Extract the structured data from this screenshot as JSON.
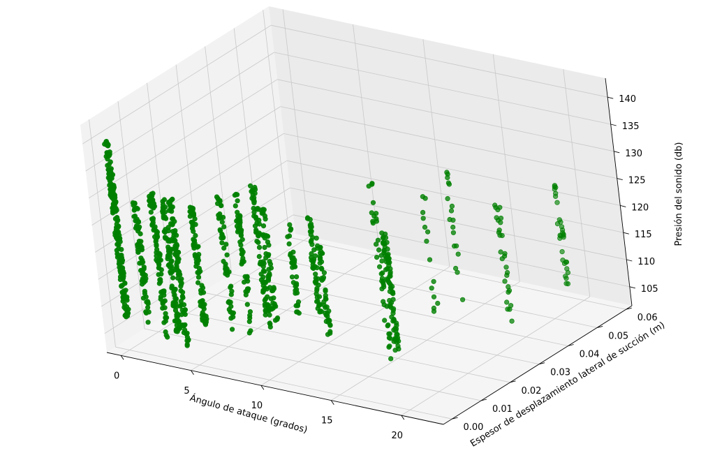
{
  "chart_data": {
    "type": "scatter",
    "projection": "3d",
    "title": "",
    "xlabel": "Ángulo de ataque (grados)",
    "ylabel": "Espesor de desplazamiento lateral de succión (m)",
    "zlabel": "Presión del sonido (db)",
    "xlim": [
      -1,
      23
    ],
    "ylim": [
      -0.003,
      0.062
    ],
    "zlim": [
      101.5,
      143.5
    ],
    "x_ticks": [
      0,
      5,
      10,
      15,
      20
    ],
    "x_tick_labels": [
      "0",
      "5",
      "10",
      "15",
      "20"
    ],
    "y_ticks": [
      0.0,
      0.01,
      0.02,
      0.03,
      0.04,
      0.05,
      0.06
    ],
    "y_tick_labels": [
      "0.00",
      "0.01",
      "0.02",
      "0.03",
      "0.04",
      "0.05",
      "0.06"
    ],
    "z_ticks": [
      105,
      110,
      115,
      120,
      125,
      130,
      135,
      140
    ],
    "z_tick_labels": [
      "105",
      "110",
      "115",
      "120",
      "125",
      "130",
      "135",
      "140"
    ],
    "grid": true,
    "marker_color": "#008000",
    "clusters": [
      {
        "x": 0.0,
        "y": 0.0004,
        "z_min": 107,
        "z_max": 140,
        "count": 200
      },
      {
        "x": 1.5,
        "y": 0.0006,
        "z_min": 107,
        "z_max": 130,
        "count": 70
      },
      {
        "x": 2.7,
        "y": 0.0008,
        "z_min": 105,
        "z_max": 132,
        "count": 90
      },
      {
        "x": 3.5,
        "y": 0.001,
        "z_min": 106,
        "z_max": 131,
        "count": 90
      },
      {
        "x": 4.0,
        "y": 0.0011,
        "z_min": 104,
        "z_max": 132,
        "count": 100
      },
      {
        "x": 5.4,
        "y": 0.0015,
        "z_min": 108,
        "z_max": 131,
        "count": 80
      },
      {
        "x": 7.3,
        "y": 0.0022,
        "z_min": 108,
        "z_max": 133,
        "count": 55
      },
      {
        "x": 8.4,
        "y": 0.003,
        "z_min": 108,
        "z_max": 134,
        "count": 60
      },
      {
        "x": 9.5,
        "y": 0.004,
        "z_min": 108,
        "z_max": 136,
        "count": 80
      },
      {
        "x": 9.9,
        "y": 0.0045,
        "z_min": 110,
        "z_max": 132,
        "count": 50
      },
      {
        "x": 11.2,
        "y": 0.0065,
        "z_min": 112,
        "z_max": 129,
        "count": 40
      },
      {
        "x": 12.3,
        "y": 0.0085,
        "z_min": 112,
        "z_max": 130,
        "count": 50
      },
      {
        "x": 12.6,
        "y": 0.0095,
        "z_min": 108,
        "z_max": 126,
        "count": 45
      },
      {
        "x": 15.4,
        "y": 0.016,
        "z_min": 103,
        "z_max": 136,
        "count": 40
      },
      {
        "x": 15.6,
        "y": 0.0175,
        "z_min": 104,
        "z_max": 126,
        "count": 80
      },
      {
        "x": 17.3,
        "y": 0.024,
        "z_min": 108,
        "z_max": 132,
        "count": 14
      },
      {
        "x": 17.4,
        "y": 0.032,
        "z_min": 107,
        "z_max": 134,
        "count": 18
      },
      {
        "x": 19.7,
        "y": 0.037,
        "z_min": 105,
        "z_max": 127,
        "count": 28
      },
      {
        "x": 19.8,
        "y": 0.056,
        "z_min": 104,
        "z_max": 124,
        "count": 30
      }
    ]
  }
}
